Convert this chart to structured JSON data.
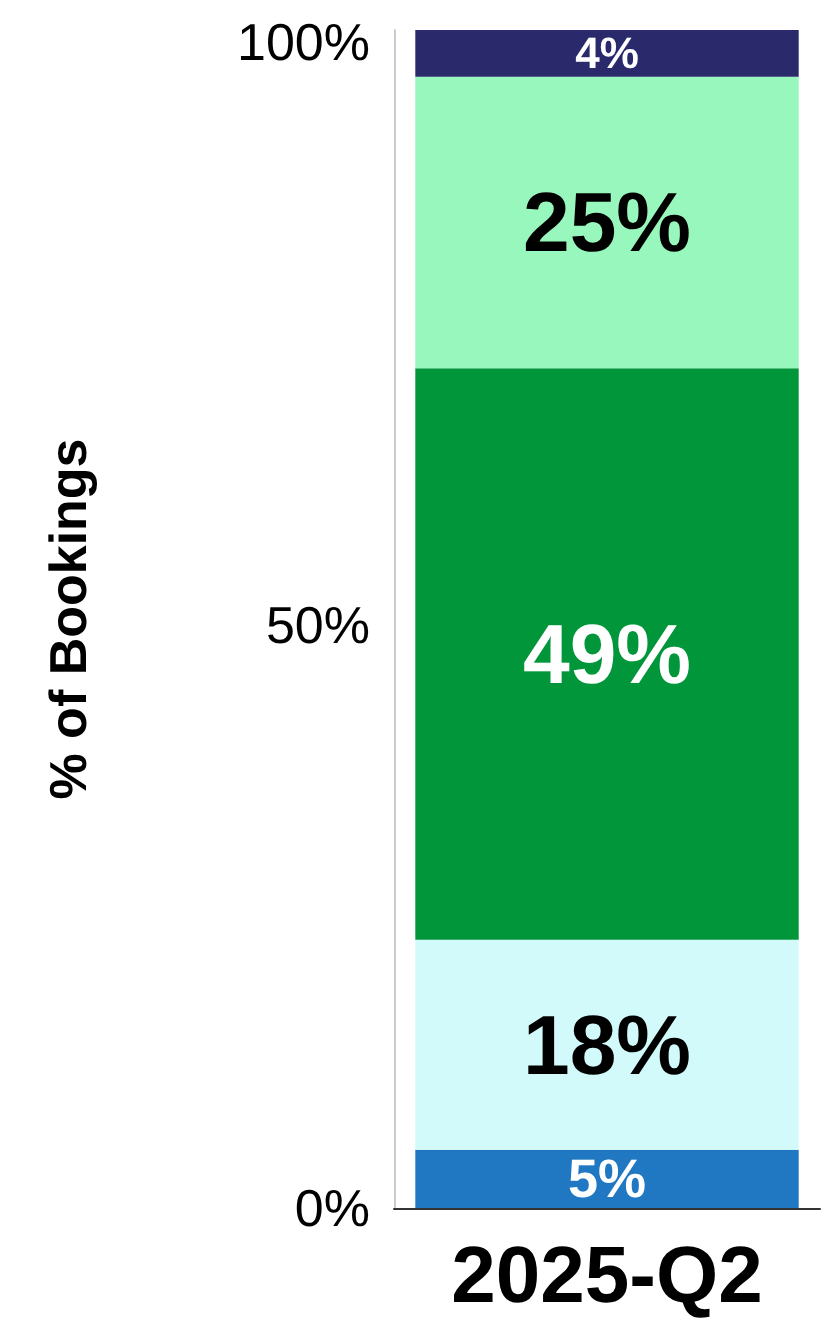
{
  "chart_data": {
    "type": "bar",
    "stacked": true,
    "ylabel": "% of Bookings",
    "categories": [
      "2025-Q2"
    ],
    "series": [
      {
        "color": "#1f78c1",
        "values": [
          5
        ],
        "value_labels": [
          "5%"
        ]
      },
      {
        "color": "#d2fafa",
        "values": [
          18
        ],
        "value_labels": [
          "18%"
        ]
      },
      {
        "color": "#009639",
        "values": [
          49
        ],
        "value_labels": [
          "49%"
        ]
      },
      {
        "color": "#98f7bd",
        "values": [
          25
        ],
        "value_labels": [
          "25%"
        ]
      },
      {
        "color": "#29296b",
        "values": [
          4
        ],
        "value_labels": [
          "4%"
        ]
      }
    ],
    "ylim": [
      0,
      101
    ],
    "yticks": [
      {
        "value": 0,
        "label": "0%"
      },
      {
        "value": 50,
        "label": "50%"
      },
      {
        "value": 100,
        "label": "100%"
      }
    ],
    "grid": false
  }
}
